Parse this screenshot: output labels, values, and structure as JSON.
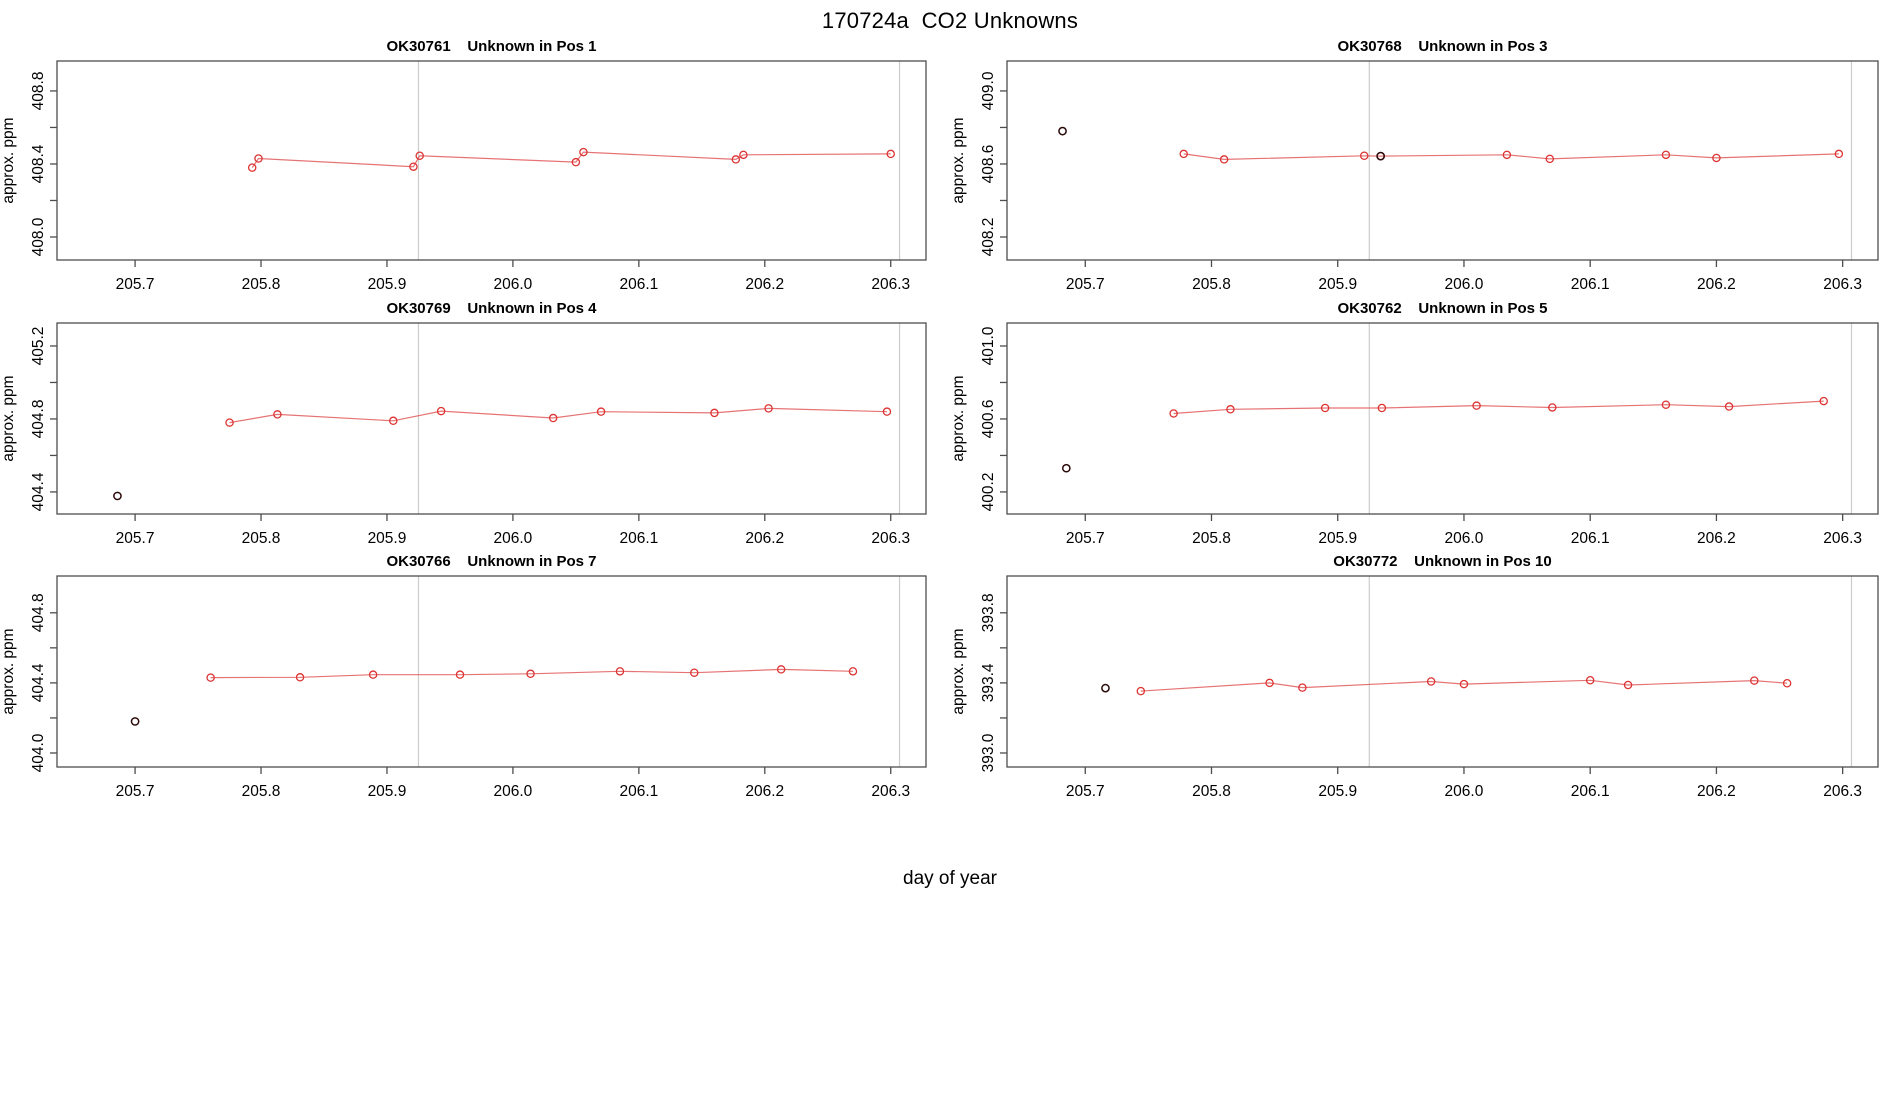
{
  "figure": {
    "title": "170724a  CO2 Unknowns",
    "xlabel": "day of year",
    "background": "#ffffff"
  },
  "colors": {
    "series_red": "#dd3333",
    "series_line": "#e05050",
    "dark_point": "#2b0a0a",
    "reference_line": "#cccccc",
    "frame": "#4d4d4d",
    "text": "#000000"
  },
  "chart_data": [
    {
      "type": "line",
      "title": "OK30761    Unknown in Pos 1",
      "sample_id": "OK30761",
      "position_label": "Unknown in Pos 1",
      "ylabel": "approx. ppm",
      "grid": {
        "col": 0,
        "row": 0
      },
      "xlim": [
        205.638,
        206.328
      ],
      "ylim": [
        407.874,
        408.964
      ],
      "xticks": [
        205.7,
        205.8,
        205.9,
        206.0,
        206.1,
        206.2,
        206.3
      ],
      "yticks_labeled": [
        408.0,
        408.4,
        408.8
      ],
      "yticks_minor": [
        408.0,
        408.2,
        408.4,
        408.6,
        408.8
      ],
      "vlines": [
        205.925,
        206.307
      ],
      "series": [
        [
          205.793,
          408.38
        ],
        [
          205.798,
          408.43
        ],
        [
          205.921,
          408.385
        ],
        [
          205.926,
          408.445
        ],
        [
          206.05,
          408.41
        ],
        [
          206.056,
          408.465
        ],
        [
          206.177,
          408.425
        ],
        [
          206.183,
          408.45
        ],
        [
          206.3,
          408.455
        ]
      ],
      "dark_points": []
    },
    {
      "type": "line",
      "title": "OK30768    Unknown in Pos 3",
      "sample_id": "OK30768",
      "position_label": "Unknown in Pos 3",
      "ylabel": "approx. ppm",
      "grid": {
        "col": 1,
        "row": 0
      },
      "xlim": [
        205.638,
        206.328
      ],
      "ylim": [
        408.074,
        409.164
      ],
      "xticks": [
        205.7,
        205.8,
        205.9,
        206.0,
        206.1,
        206.2,
        206.3
      ],
      "yticks_labeled": [
        408.2,
        408.6,
        409.0
      ],
      "yticks_minor": [
        408.2,
        408.4,
        408.6,
        408.8,
        409.0
      ],
      "vlines": [
        205.925,
        206.307
      ],
      "series": [
        [
          205.778,
          408.655
        ],
        [
          205.81,
          408.625
        ],
        [
          205.921,
          408.645
        ],
        [
          205.934,
          408.643
        ],
        [
          206.034,
          408.65
        ],
        [
          206.068,
          408.628
        ],
        [
          206.16,
          408.65
        ],
        [
          206.2,
          408.633
        ],
        [
          206.297,
          408.655
        ]
      ],
      "dark_points": [
        [
          205.682,
          408.78
        ],
        [
          205.934,
          408.643
        ]
      ]
    },
    {
      "type": "line",
      "title": "OK30769    Unknown in Pos 4",
      "sample_id": "OK30769",
      "position_label": "Unknown in Pos 4",
      "ylabel": "approx. ppm",
      "grid": {
        "col": 0,
        "row": 1
      },
      "xlim": [
        205.638,
        206.328
      ],
      "ylim": [
        404.279,
        405.326
      ],
      "xticks": [
        205.7,
        205.8,
        205.9,
        206.0,
        206.1,
        206.2,
        206.3
      ],
      "yticks_labeled": [
        404.4,
        404.8,
        405.2
      ],
      "yticks_minor": [
        404.4,
        404.6,
        404.8,
        405.0,
        405.2
      ],
      "vlines": [
        205.925,
        206.307
      ],
      "series": [
        [
          205.775,
          404.78
        ],
        [
          205.813,
          404.825
        ],
        [
          205.905,
          404.79
        ],
        [
          205.943,
          404.843
        ],
        [
          206.032,
          404.805
        ],
        [
          206.07,
          404.84
        ],
        [
          206.16,
          404.833
        ],
        [
          206.203,
          404.858
        ],
        [
          206.297,
          404.84
        ]
      ],
      "dark_points": [
        [
          205.686,
          404.378
        ]
      ]
    },
    {
      "type": "line",
      "title": "OK30762    Unknown in Pos 5",
      "sample_id": "OK30762",
      "position_label": "Unknown in Pos 5",
      "ylabel": "approx. ppm",
      "grid": {
        "col": 1,
        "row": 1
      },
      "xlim": [
        205.638,
        206.328
      ],
      "ylim": [
        400.079,
        401.126
      ],
      "xticks": [
        205.7,
        205.8,
        205.9,
        206.0,
        206.1,
        206.2,
        206.3
      ],
      "yticks_labeled": [
        400.2,
        400.6,
        401.0
      ],
      "yticks_minor": [
        400.2,
        400.4,
        400.6,
        400.8,
        401.0
      ],
      "vlines": [
        205.925,
        206.307
      ],
      "series": [
        [
          205.77,
          400.63
        ],
        [
          205.815,
          400.653
        ],
        [
          205.89,
          400.66
        ],
        [
          205.935,
          400.66
        ],
        [
          206.01,
          400.673
        ],
        [
          206.07,
          400.663
        ],
        [
          206.16,
          400.678
        ],
        [
          206.21,
          400.668
        ],
        [
          206.285,
          400.698
        ]
      ],
      "dark_points": [
        [
          205.685,
          400.33
        ]
      ]
    },
    {
      "type": "line",
      "title": "OK30766    Unknown in Pos 7",
      "sample_id": "OK30766",
      "position_label": "Unknown in Pos 7",
      "ylabel": "approx. ppm",
      "grid": {
        "col": 0,
        "row": 2
      },
      "xlim": [
        205.638,
        206.328
      ],
      "ylim": [
        403.92,
        405.01
      ],
      "xticks": [
        205.7,
        205.8,
        205.9,
        206.0,
        206.1,
        206.2,
        206.3
      ],
      "yticks_labeled": [
        404.0,
        404.4,
        404.8
      ],
      "yticks_minor": [
        404.0,
        404.2,
        404.4,
        404.6,
        404.8
      ],
      "vlines": [
        205.925,
        206.307
      ],
      "series": [
        [
          205.76,
          404.43
        ],
        [
          205.831,
          404.432
        ],
        [
          205.889,
          404.447
        ],
        [
          205.958,
          404.447
        ],
        [
          206.014,
          404.452
        ],
        [
          206.085,
          404.466
        ],
        [
          206.144,
          404.458
        ],
        [
          206.213,
          404.477
        ],
        [
          206.27,
          404.466
        ]
      ],
      "dark_points": [
        [
          205.7,
          404.18
        ]
      ]
    },
    {
      "type": "line",
      "title": "OK30772    Unknown in Pos 10",
      "sample_id": "OK30772",
      "position_label": "Unknown in Pos 10",
      "ylabel": "approx. ppm",
      "grid": {
        "col": 1,
        "row": 2
      },
      "xlim": [
        205.638,
        206.328
      ],
      "ylim": [
        392.92,
        394.01
      ],
      "xticks": [
        205.7,
        205.8,
        205.9,
        206.0,
        206.1,
        206.2,
        206.3
      ],
      "yticks_labeled": [
        393.0,
        393.4,
        393.8
      ],
      "yticks_minor": [
        393.0,
        393.2,
        393.4,
        393.6,
        393.8
      ],
      "vlines": [
        205.925,
        206.307
      ],
      "series": [
        [
          205.744,
          393.353
        ],
        [
          205.846,
          393.4
        ],
        [
          205.872,
          393.373
        ],
        [
          205.974,
          393.408
        ],
        [
          206.0,
          393.393
        ],
        [
          206.1,
          393.415
        ],
        [
          206.13,
          393.388
        ],
        [
          206.23,
          393.413
        ],
        [
          206.256,
          393.398
        ]
      ],
      "dark_points": [
        [
          205.716,
          393.37
        ]
      ]
    }
  ]
}
